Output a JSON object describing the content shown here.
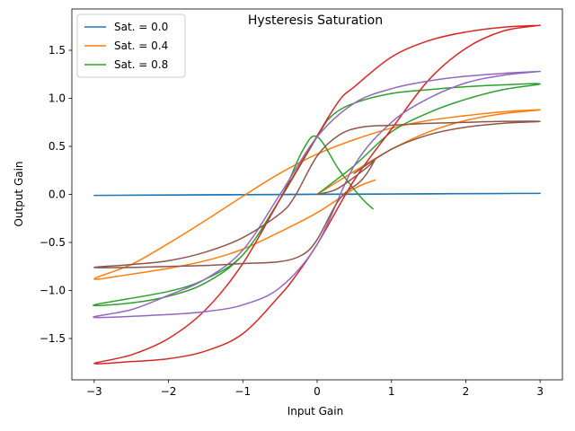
{
  "chart_data": {
    "type": "line",
    "title": "Hysteresis Saturation",
    "xlabel": "Input Gain",
    "ylabel": "Output Gain",
    "xlim": [
      -3.3,
      3.3
    ],
    "ylim": [
      -1.93,
      1.93
    ],
    "xticks": [
      -3,
      -2,
      -1,
      0,
      1,
      2,
      3
    ],
    "xtick_labels": [
      "−3",
      "−2",
      "−1",
      "0",
      "1",
      "2",
      "3"
    ],
    "yticks": [
      -1.5,
      -1.0,
      -0.5,
      0.0,
      0.5,
      1.0,
      1.5
    ],
    "ytick_labels": [
      "−1.5",
      "−1.0",
      "−0.5",
      "0.0",
      "0.5",
      "1.0",
      "1.5"
    ],
    "grid": false,
    "legend_position": "top-left",
    "series": [
      {
        "name": "Sat. = 0.0",
        "color": "#1f77b4",
        "x": [
          -3,
          -2,
          -1,
          0,
          1,
          2,
          3,
          2,
          1,
          0,
          -1,
          -2,
          -3
        ],
        "y": [
          -0.01,
          -0.007,
          -0.004,
          0.0,
          0.003,
          0.007,
          0.01,
          0.008,
          0.005,
          0.002,
          -0.002,
          -0.006,
          -0.01
        ]
      },
      {
        "name": "Sat. = 0.4",
        "color": "#ff7f0e",
        "x": [
          0.78,
          0.5,
          0.0,
          -0.5,
          -1.0,
          -1.5,
          -2.0,
          -2.5,
          -3.0,
          -2.5,
          -2.0,
          -1.5,
          -1.0,
          -0.5,
          0.0,
          0.5,
          1.0,
          1.5,
          2.0,
          2.5,
          3.0,
          2.5,
          2.0,
          1.5,
          1.0,
          0.5,
          0.0
        ],
        "y": [
          0.15,
          0.06,
          -0.19,
          -0.39,
          -0.57,
          -0.69,
          -0.77,
          -0.83,
          -0.88,
          -0.73,
          -0.51,
          -0.27,
          -0.02,
          0.22,
          0.42,
          0.57,
          0.69,
          0.77,
          0.82,
          0.86,
          0.88,
          0.84,
          0.77,
          0.65,
          0.47,
          0.24,
          0.0
        ]
      },
      {
        "name": "Sat. = 0.8",
        "color": "#2ca02c",
        "x": [
          0.0,
          0.5,
          1.0,
          1.5,
          2.0,
          2.5,
          3.0,
          2.5,
          2.0,
          1.5,
          1.0,
          0.5,
          0.2,
          0.0,
          -0.5,
          -1.0,
          -1.5,
          -2.0,
          -3.0,
          -2.5,
          -2.0,
          -1.5,
          -1.0,
          -0.5,
          -0.2,
          0.0,
          0.3,
          0.6,
          0.75
        ],
        "y": [
          0.0,
          0.3,
          0.65,
          0.85,
          0.99,
          1.09,
          1.15,
          1.14,
          1.12,
          1.09,
          1.05,
          0.95,
          0.82,
          0.6,
          -0.05,
          -0.63,
          -0.88,
          -1.01,
          -1.15,
          -1.13,
          -1.06,
          -0.92,
          -0.63,
          -0.05,
          0.45,
          0.6,
          0.25,
          -0.04,
          -0.15
        ]
      },
      {
        "series_id": 3,
        "color": "#d62728",
        "x": [
          3.0,
          2.5,
          2.0,
          1.5,
          1.0,
          0.5,
          0.0,
          -0.3,
          -0.5,
          -1.0,
          -1.5,
          -2.0,
          -2.5,
          -3.0,
          -2.5,
          -2.0,
          -1.5,
          -1.0,
          -0.5,
          0.0,
          0.3,
          0.5,
          1.0,
          1.5,
          2.0,
          2.5,
          3.0
        ],
        "y": [
          1.76,
          1.7,
          1.52,
          1.19,
          0.68,
          0.15,
          -0.52,
          -0.86,
          -1.05,
          -1.45,
          -1.63,
          -1.71,
          -1.74,
          -1.76,
          -1.67,
          -1.5,
          -1.2,
          -0.72,
          -0.05,
          0.61,
          0.98,
          1.12,
          1.43,
          1.6,
          1.69,
          1.74,
          1.76
        ]
      },
      {
        "series_id": 4,
        "color": "#9467bd",
        "x": [
          3.0,
          2.5,
          2.0,
          1.5,
          1.0,
          0.5,
          0.0,
          -0.5,
          -1.0,
          -1.5,
          -2.0,
          -3.0,
          -2.5,
          -2.0,
          -1.5,
          -1.0,
          -0.5,
          0.0,
          0.5,
          1.0,
          1.5,
          2.0,
          2.5,
          3.0
        ],
        "y": [
          1.28,
          1.24,
          1.16,
          1.0,
          0.75,
          0.3,
          -0.52,
          -0.97,
          -1.15,
          -1.22,
          -1.25,
          -1.28,
          -1.2,
          -1.05,
          -0.88,
          -0.58,
          0.0,
          0.6,
          0.95,
          1.1,
          1.18,
          1.23,
          1.26,
          1.28
        ]
      },
      {
        "series_id": 5,
        "color": "#8c564b",
        "x": [
          0.0,
          0.25,
          0.5,
          0.7,
          0.77,
          0.6,
          0.3,
          0.0,
          -0.2,
          -0.5,
          -1.0,
          -1.5,
          -2.0,
          -2.5,
          -3.0,
          -2.5,
          -2.0,
          -1.5,
          -1.0,
          -0.5,
          -0.3,
          0.0,
          0.3,
          0.6,
          1.0,
          1.5,
          2.0,
          2.5,
          3.0,
          2.5,
          2.0,
          1.5,
          1.0,
          0.5
        ],
        "y": [
          0.0,
          0.05,
          0.18,
          0.3,
          0.35,
          0.15,
          -0.05,
          -0.47,
          -0.63,
          -0.7,
          -0.72,
          -0.74,
          -0.75,
          -0.76,
          -0.76,
          -0.73,
          -0.69,
          -0.6,
          -0.45,
          -0.2,
          -0.02,
          0.4,
          0.62,
          0.7,
          0.72,
          0.74,
          0.75,
          0.76,
          0.76,
          0.74,
          0.7,
          0.62,
          0.47,
          0.22
        ]
      }
    ]
  }
}
